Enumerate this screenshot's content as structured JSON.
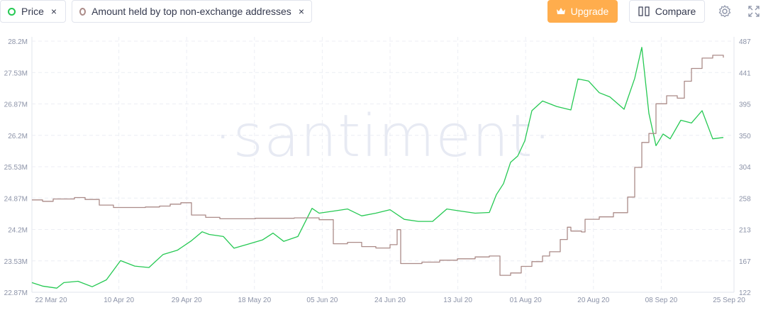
{
  "chips": {
    "price": {
      "label": "Price",
      "close": "×"
    },
    "amount": {
      "label": "Amount held by top non-exchange addresses",
      "close": "×"
    }
  },
  "toolbar": {
    "upgrade_label": "Upgrade",
    "compare_label": "Compare"
  },
  "icons": {
    "upgrade": "crown-icon",
    "compare": "compare-columns-icon",
    "settings": "gear-icon",
    "fullscreen": "fullscreen-icon"
  },
  "watermark": "·santiment·",
  "colors": {
    "price": "#26c953",
    "amount": "#ab8b88",
    "upgrade": "#ffad4d",
    "grid": "#e7eaf0",
    "tick": "#8c93a8"
  },
  "chart_data": {
    "type": "line",
    "x_ticks": [
      "22 Mar 20",
      "10 Apr 20",
      "29 Apr 20",
      "18 May 20",
      "05 Jun 20",
      "24 Jun 20",
      "13 Jul 20",
      "01 Aug 20",
      "20 Aug 20",
      "08 Sep 20",
      "25 Sep 20"
    ],
    "y_left_ticks": [
      "28.2M",
      "27.53M",
      "26.87M",
      "26.2M",
      "25.53M",
      "24.87M",
      "24.2M",
      "23.53M",
      "22.87M"
    ],
    "y_right_ticks": [
      "487",
      "441",
      "395",
      "350",
      "304",
      "258",
      "213",
      "167",
      "122"
    ],
    "y_left_range": [
      22870000,
      28200000
    ],
    "y_right_range": [
      122,
      487
    ],
    "grid": true,
    "series": [
      {
        "name": "Price",
        "axis": "right",
        "step": false,
        "points": [
          [
            "2020-03-13",
            136
          ],
          [
            "2020-03-16",
            131
          ],
          [
            "2020-03-20",
            128
          ],
          [
            "2020-03-22",
            136
          ],
          [
            "2020-03-26",
            138
          ],
          [
            "2020-03-30",
            130
          ],
          [
            "2020-04-03",
            140
          ],
          [
            "2020-04-07",
            168
          ],
          [
            "2020-04-11",
            160
          ],
          [
            "2020-04-15",
            158
          ],
          [
            "2020-04-19",
            177
          ],
          [
            "2020-04-23",
            183
          ],
          [
            "2020-04-27",
            197
          ],
          [
            "2020-04-30",
            210
          ],
          [
            "2020-05-02",
            206
          ],
          [
            "2020-05-06",
            203
          ],
          [
            "2020-05-09",
            186
          ],
          [
            "2020-05-13",
            192
          ],
          [
            "2020-05-17",
            198
          ],
          [
            "2020-05-20",
            208
          ],
          [
            "2020-05-23",
            196
          ],
          [
            "2020-05-27",
            203
          ],
          [
            "2020-05-31",
            244
          ],
          [
            "2020-06-02",
            237
          ],
          [
            "2020-06-06",
            240
          ],
          [
            "2020-06-10",
            243
          ],
          [
            "2020-06-14",
            233
          ],
          [
            "2020-06-18",
            237
          ],
          [
            "2020-06-22",
            242
          ],
          [
            "2020-06-26",
            228
          ],
          [
            "2020-06-30",
            225
          ],
          [
            "2020-07-04",
            225
          ],
          [
            "2020-07-08",
            243
          ],
          [
            "2020-07-12",
            240
          ],
          [
            "2020-07-16",
            237
          ],
          [
            "2020-07-20",
            238
          ],
          [
            "2020-07-22",
            264
          ],
          [
            "2020-07-24",
            280
          ],
          [
            "2020-07-26",
            311
          ],
          [
            "2020-07-28",
            320
          ],
          [
            "2020-07-30",
            342
          ],
          [
            "2020-08-01",
            386
          ],
          [
            "2020-08-04",
            400
          ],
          [
            "2020-08-08",
            392
          ],
          [
            "2020-08-12",
            387
          ],
          [
            "2020-08-14",
            432
          ],
          [
            "2020-08-17",
            429
          ],
          [
            "2020-08-20",
            412
          ],
          [
            "2020-08-23",
            406
          ],
          [
            "2020-08-27",
            388
          ],
          [
            "2020-08-30",
            433
          ],
          [
            "2020-09-01",
            478
          ],
          [
            "2020-09-03",
            382
          ],
          [
            "2020-09-05",
            335
          ],
          [
            "2020-09-07",
            352
          ],
          [
            "2020-09-09",
            345
          ],
          [
            "2020-09-12",
            372
          ],
          [
            "2020-09-15",
            368
          ],
          [
            "2020-09-18",
            386
          ],
          [
            "2020-09-21",
            345
          ],
          [
            "2020-09-24",
            347
          ]
        ]
      },
      {
        "name": "Amount held by top non-exchange addresses",
        "axis": "left",
        "step": true,
        "points": [
          [
            "2020-03-13",
            24830000
          ],
          [
            "2020-03-16",
            24800000
          ],
          [
            "2020-03-19",
            24850000
          ],
          [
            "2020-03-25",
            24880000
          ],
          [
            "2020-03-28",
            24840000
          ],
          [
            "2020-04-01",
            24720000
          ],
          [
            "2020-04-05",
            24670000
          ],
          [
            "2020-04-14",
            24680000
          ],
          [
            "2020-04-18",
            24700000
          ],
          [
            "2020-04-21",
            24740000
          ],
          [
            "2020-04-24",
            24770000
          ],
          [
            "2020-04-27",
            24510000
          ],
          [
            "2020-05-01",
            24460000
          ],
          [
            "2020-05-05",
            24430000
          ],
          [
            "2020-05-15",
            24440000
          ],
          [
            "2020-05-26",
            24450000
          ],
          [
            "2020-06-02",
            24410000
          ],
          [
            "2020-06-06",
            23900000
          ],
          [
            "2020-06-10",
            23930000
          ],
          [
            "2020-06-14",
            23840000
          ],
          [
            "2020-06-18",
            23810000
          ],
          [
            "2020-06-22",
            23880000
          ],
          [
            "2020-06-24",
            24200000
          ],
          [
            "2020-06-25",
            23480000
          ],
          [
            "2020-07-01",
            23510000
          ],
          [
            "2020-07-06",
            23550000
          ],
          [
            "2020-07-11",
            23580000
          ],
          [
            "2020-07-16",
            23620000
          ],
          [
            "2020-07-20",
            23640000
          ],
          [
            "2020-07-23",
            23230000
          ],
          [
            "2020-07-26",
            23280000
          ],
          [
            "2020-07-29",
            23420000
          ],
          [
            "2020-08-01",
            23520000
          ],
          [
            "2020-08-04",
            23640000
          ],
          [
            "2020-08-06",
            23730000
          ],
          [
            "2020-08-09",
            23990000
          ],
          [
            "2020-08-11",
            24250000
          ],
          [
            "2020-08-12",
            24170000
          ],
          [
            "2020-08-15",
            24150000
          ],
          [
            "2020-08-16",
            24420000
          ],
          [
            "2020-08-20",
            24470000
          ],
          [
            "2020-08-24",
            24560000
          ],
          [
            "2020-08-28",
            24890000
          ],
          [
            "2020-08-30",
            25520000
          ],
          [
            "2020-09-01",
            26050000
          ],
          [
            "2020-09-03",
            26240000
          ],
          [
            "2020-09-05",
            26870000
          ],
          [
            "2020-09-08",
            27040000
          ],
          [
            "2020-09-11",
            26990000
          ],
          [
            "2020-09-13",
            27350000
          ],
          [
            "2020-09-15",
            27620000
          ],
          [
            "2020-09-18",
            27840000
          ],
          [
            "2020-09-21",
            27900000
          ],
          [
            "2020-09-24",
            27850000
          ]
        ]
      }
    ]
  }
}
